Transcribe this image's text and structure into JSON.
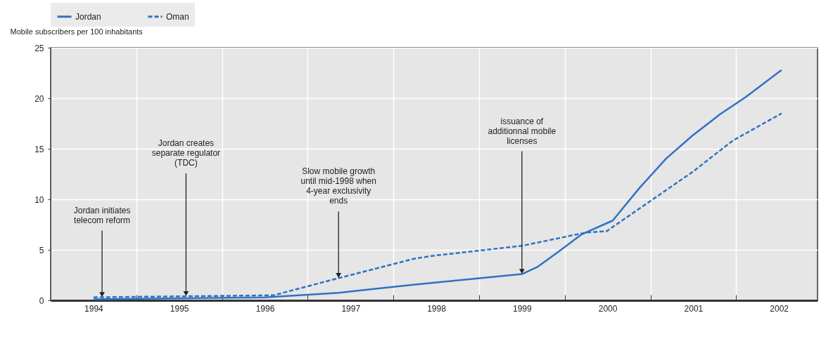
{
  "chart_data": {
    "type": "line",
    "ylabel": "Mobile subscribers per 100 inhabitants",
    "xlim": [
      1993.5,
      2002.45
    ],
    "xticks": [
      1994,
      1995,
      1996,
      1997,
      1998,
      1999,
      2000,
      2001,
      2002,
      {
        "value": 1994.5,
        "label": null
      },
      {
        "value": 1995.5,
        "label": null
      },
      {
        "value": 1996.5,
        "label": null
      },
      {
        "value": 1997.5,
        "label": null
      },
      {
        "value": 1998.5,
        "label": null
      },
      {
        "value": 1999.5,
        "label": null
      },
      {
        "value": 2000.5,
        "label": null
      },
      {
        "value": 2001.5,
        "label": null
      }
    ],
    "ylim": [
      0,
      25
    ],
    "yticks": [
      0,
      5,
      10,
      15,
      20,
      25
    ],
    "grid": true,
    "legend": "top",
    "series": [
      {
        "name": "Jordan",
        "color": "#2f72c4",
        "line_style": "solid",
        "x": [
          1994.0,
          1995.0,
          1996.0,
          1996.86,
          1997.73,
          1999.0,
          1999.18,
          1999.44,
          1999.69,
          2000.06,
          2000.37,
          2000.68,
          2000.99,
          2001.31,
          2001.61,
          2002.03
        ],
        "values": [
          0.1,
          0.2,
          0.3,
          0.75,
          1.55,
          2.6,
          3.3,
          4.9,
          6.5,
          7.9,
          11.1,
          14.0,
          16.3,
          18.4,
          20.1,
          22.8
        ]
      },
      {
        "name": "Oman",
        "color": "#2f72c4",
        "line_style": "dashed",
        "x": [
          1994.0,
          1995.0,
          1996.1,
          1996.86,
          1997.73,
          1997.95,
          1999.0,
          1999.74,
          1999.99,
          2000.46,
          2000.99,
          2001.46,
          2002.03
        ],
        "values": [
          0.3,
          0.4,
          0.5,
          2.2,
          4.1,
          4.4,
          5.4,
          6.7,
          6.85,
          9.6,
          12.7,
          15.8,
          18.5
        ]
      }
    ],
    "annotations": [
      {
        "text": "Jordan initiates telecom reform",
        "x": 1994.1,
        "y": 0.3
      },
      {
        "text": "Jordan creates separate regulator (TDC)",
        "x": 1995.08,
        "y": 0.4
      },
      {
        "text": "Slow mobile growth until mid-1998 when 4-year exclusivity ends",
        "x": 1996.86,
        "y": 2.2
      },
      {
        "text": "issuance of additionnal mobile licenses",
        "x": 1999.0,
        "y": 2.6
      }
    ]
  }
}
